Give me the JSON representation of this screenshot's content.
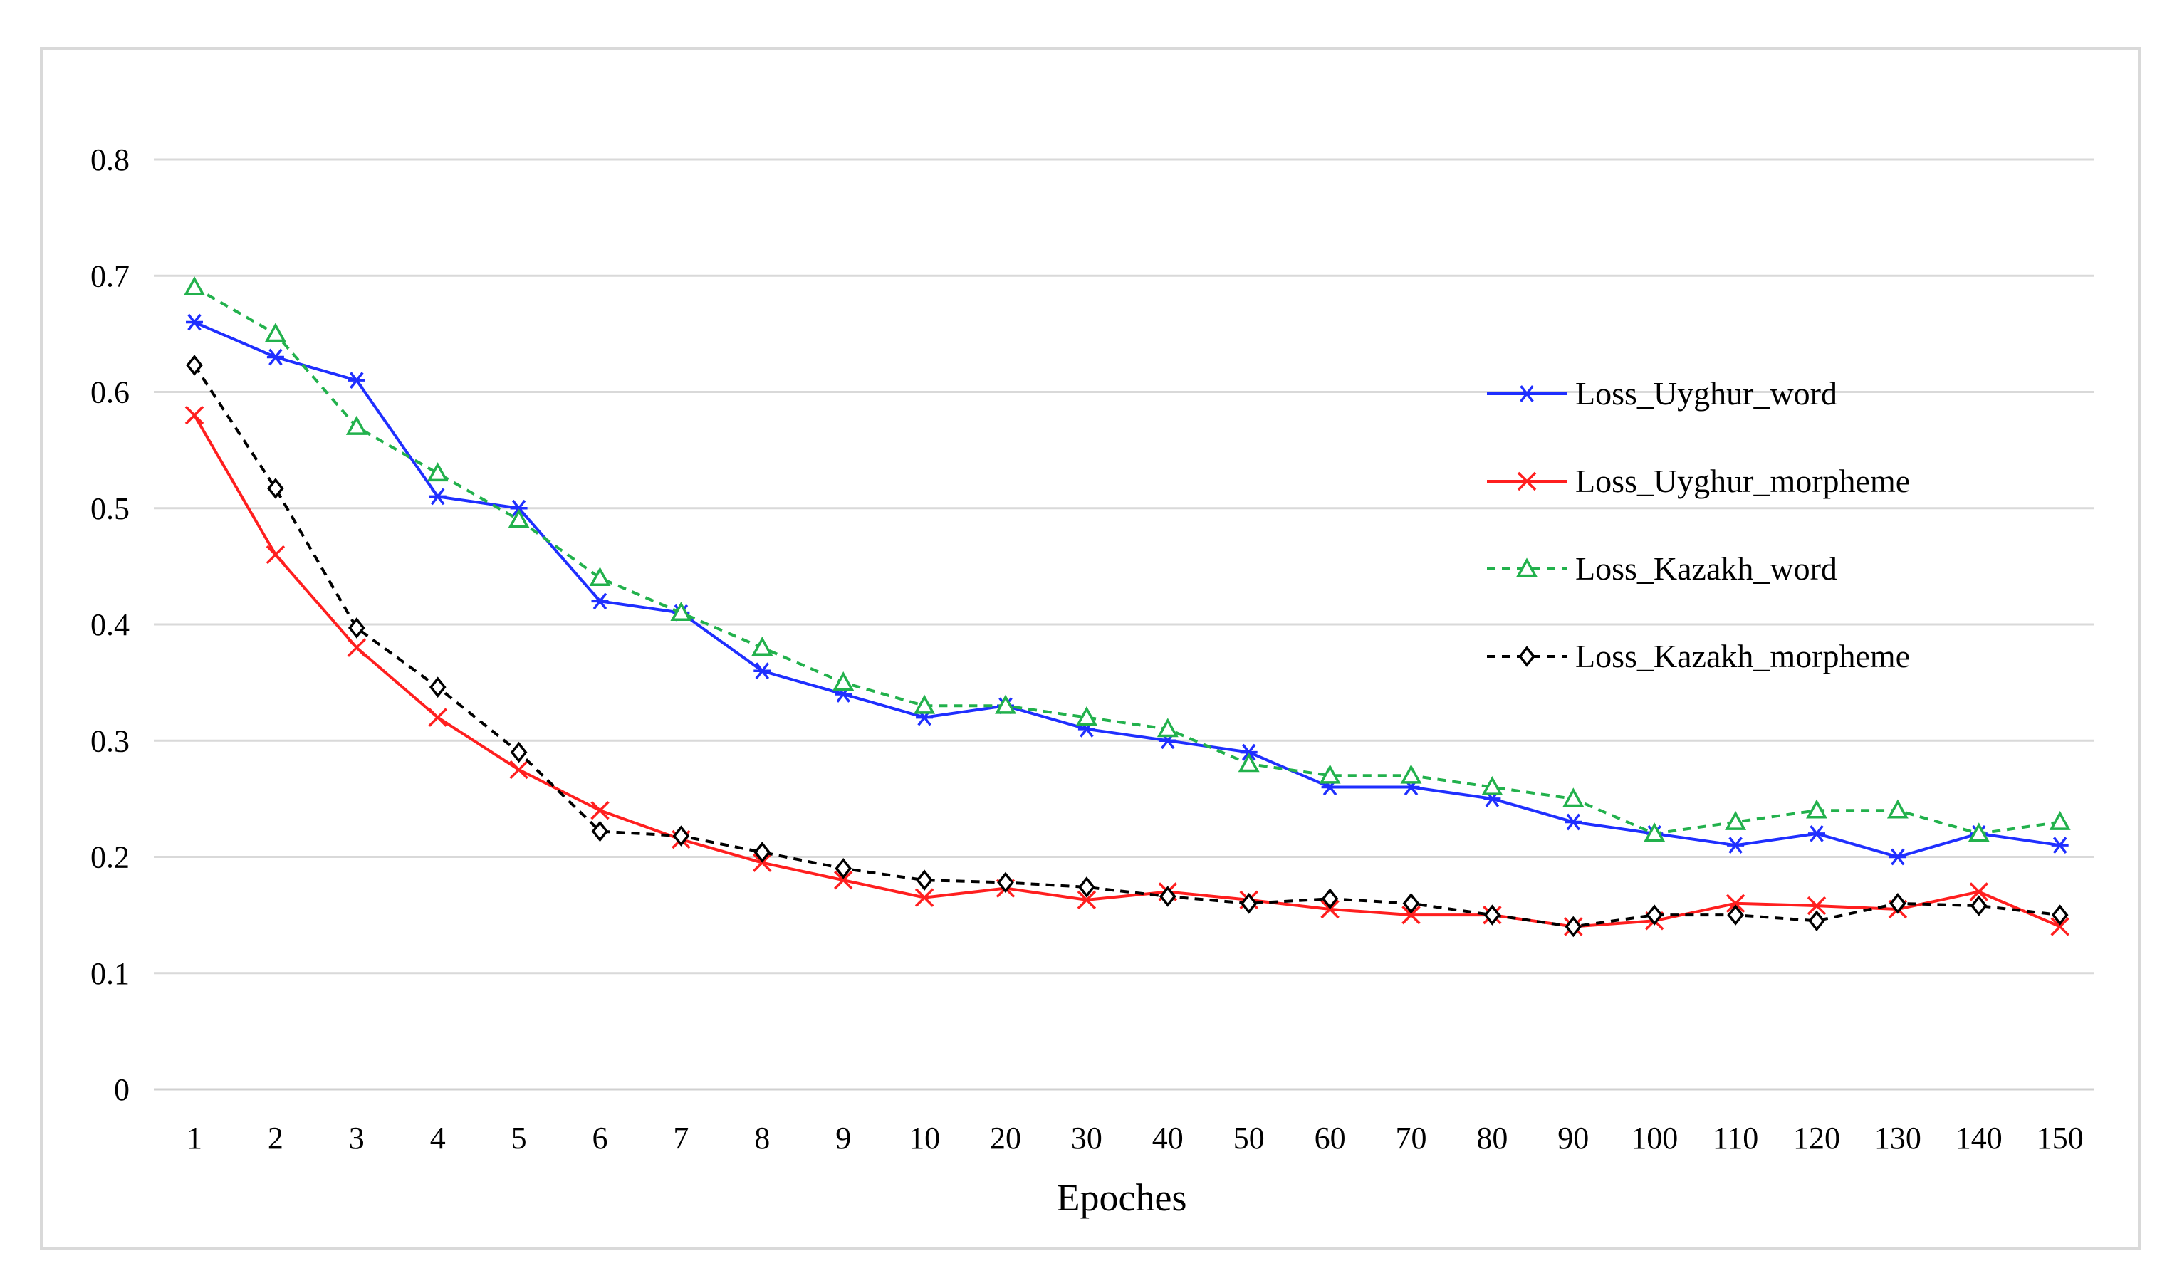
{
  "chart_data": {
    "type": "line",
    "title": "",
    "xlabel": "Epoches",
    "ylabel": "",
    "categories": [
      "1",
      "2",
      "3",
      "4",
      "5",
      "6",
      "7",
      "8",
      "9",
      "10",
      "20",
      "30",
      "40",
      "50",
      "60",
      "70",
      "80",
      "90",
      "100",
      "110",
      "120",
      "130",
      "140",
      "150"
    ],
    "ylim": [
      0,
      0.8
    ],
    "yticks": [
      "0",
      "0.1",
      "0.2",
      "0.3",
      "0.4",
      "0.5",
      "0.6",
      "0.7",
      "0.8"
    ],
    "grid": true,
    "legend_position": "right",
    "series": [
      {
        "name": "Loss_Uyghur_word",
        "color": "#1f2fff",
        "marker": "asterisk",
        "dash": "solid",
        "values": [
          0.66,
          0.63,
          0.61,
          0.51,
          0.5,
          0.42,
          0.41,
          0.36,
          0.34,
          0.32,
          0.33,
          0.31,
          0.3,
          0.29,
          0.26,
          0.26,
          0.25,
          0.23,
          0.22,
          0.21,
          0.22,
          0.2,
          0.22,
          0.21
        ]
      },
      {
        "name": "Loss_Uyghur_morpheme",
        "color": "#ff1f1f",
        "marker": "x",
        "dash": "solid",
        "values": [
          0.58,
          0.46,
          0.38,
          0.32,
          0.275,
          0.24,
          0.215,
          0.195,
          0.18,
          0.165,
          0.173,
          0.163,
          0.17,
          0.163,
          0.155,
          0.15,
          0.15,
          0.14,
          0.145,
          0.16,
          0.158,
          0.155,
          0.17,
          0.14
        ]
      },
      {
        "name": "Loss_Kazakh_word",
        "color": "#22b14c",
        "marker": "triangle",
        "dash": "dashed",
        "values": [
          0.69,
          0.65,
          0.57,
          0.53,
          0.49,
          0.44,
          0.41,
          0.38,
          0.35,
          0.33,
          0.33,
          0.32,
          0.31,
          0.28,
          0.27,
          0.27,
          0.26,
          0.25,
          0.22,
          0.23,
          0.24,
          0.24,
          0.22,
          0.23
        ]
      },
      {
        "name": "Loss_Kazakh_morpheme",
        "color": "#000000",
        "marker": "diamond",
        "dash": "dashed",
        "values": [
          0.623,
          0.517,
          0.397,
          0.346,
          0.29,
          0.222,
          0.218,
          0.204,
          0.19,
          0.18,
          0.178,
          0.174,
          0.166,
          0.16,
          0.164,
          0.16,
          0.15,
          0.14,
          0.15,
          0.15,
          0.145,
          0.16,
          0.158,
          0.15
        ]
      }
    ]
  }
}
